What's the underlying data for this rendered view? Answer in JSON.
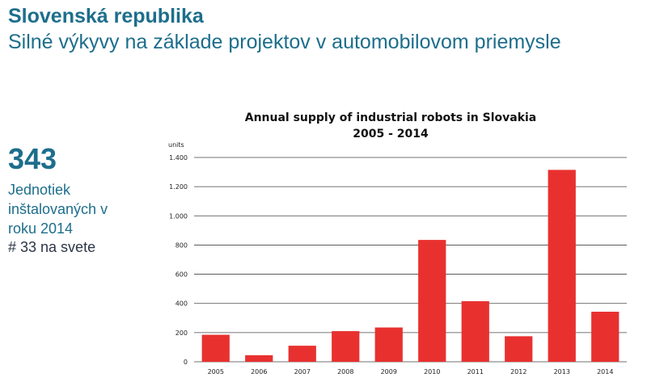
{
  "header": {
    "title": "Slovenská republika",
    "subtitle": "Silné výkyvy na základe projektov v automobilovom priemysle"
  },
  "kpi": {
    "value": "343",
    "description": "Jednotiek inštalovaných v roku 2014",
    "rank": "# 33 na svete"
  },
  "colors": {
    "accent": "#1d6e8c",
    "bar": "#e8312f",
    "grid": "#444444"
  },
  "chart_data": {
    "type": "bar",
    "title": "Annual supply of industrial robots in Slovakia",
    "subtitle": "2005 - 2014",
    "ylabel": "units",
    "xlabel": "",
    "categories": [
      "2005",
      "2006",
      "2007",
      "2008",
      "2009",
      "2010",
      "2011",
      "2012",
      "2013",
      "2014"
    ],
    "values": [
      185,
      45,
      110,
      210,
      235,
      835,
      415,
      175,
      1315,
      343
    ],
    "ylim": [
      0,
      1400
    ],
    "yticks": [
      0,
      200,
      400,
      600,
      800,
      1000,
      1200,
      1400
    ],
    "ytick_labels": [
      "0",
      "200",
      "400",
      "600",
      "800",
      "1.000",
      "1.200",
      "1.400"
    ],
    "grid": true,
    "legend": "none"
  }
}
